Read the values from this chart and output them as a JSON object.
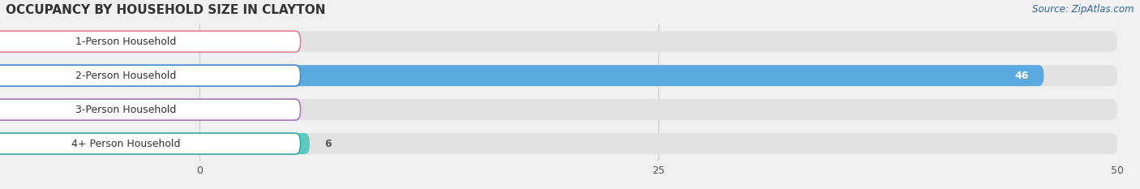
{
  "title": "OCCUPANCY BY HOUSEHOLD SIZE IN CLAYTON",
  "source": "Source: ZipAtlas.com",
  "categories": [
    "1-Person Household",
    "2-Person Household",
    "3-Person Household",
    "4+ Person Household"
  ],
  "values": [
    0,
    46,
    0,
    6
  ],
  "bar_colors": [
    "#f0a0aa",
    "#5aaae0",
    "#c8a8d8",
    "#5ec8c0"
  ],
  "label_border_colors": [
    "#e08090",
    "#4488cc",
    "#a878b8",
    "#38aaa8"
  ],
  "xlim": [
    0,
    50
  ],
  "xticks": [
    0,
    25,
    50
  ],
  "background_color": "#f0f0f0",
  "bar_background_color": "#e2e2e2",
  "title_fontsize": 11,
  "source_fontsize": 8.5,
  "label_fontsize": 9,
  "value_fontsize": 9
}
